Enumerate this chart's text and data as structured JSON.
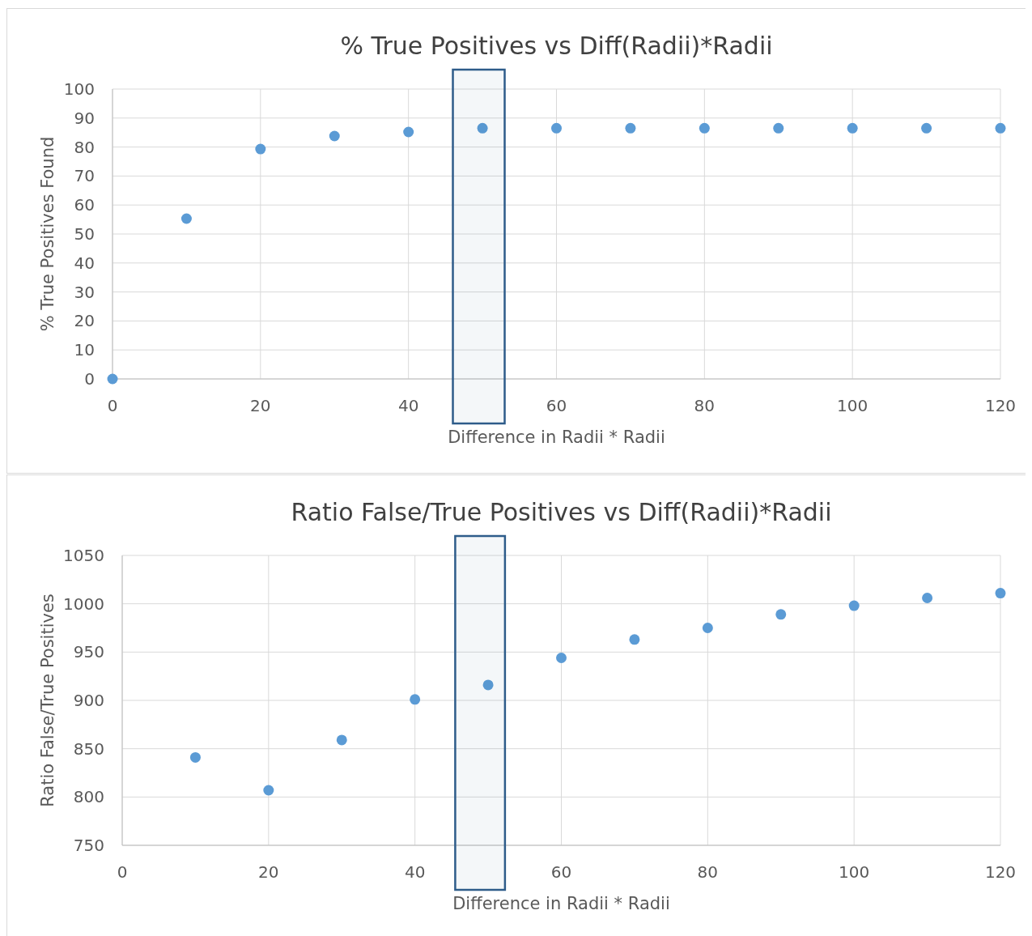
{
  "chart_data": [
    {
      "type": "scatter",
      "title": "% True Positives vs Diff(Radii)*Radii",
      "xlabel": "Difference in Radii * Radii",
      "ylabel": "% True Positives Found",
      "x": [
        0,
        10,
        20,
        30,
        40,
        50,
        60,
        70,
        80,
        90,
        100,
        110,
        120
      ],
      "series": [
        {
          "color": "#5b9bd5",
          "values": [
            0,
            55.3,
            79.3,
            83.8,
            85.2,
            86.5,
            86.5,
            86.5,
            86.5,
            86.5,
            86.5,
            86.5,
            86.5
          ]
        }
      ],
      "xlim": [
        0,
        120
      ],
      "xticks": [
        0,
        20,
        40,
        60,
        80,
        100,
        120
      ],
      "ylim": [
        0,
        100
      ],
      "yticks": [
        0,
        10,
        20,
        30,
        40,
        50,
        60,
        70,
        80,
        90,
        100
      ],
      "grid": true,
      "marker": "circle",
      "bands": [
        {
          "axis": "x",
          "from": 46,
          "to": 53,
          "color": "#2e5c8a"
        }
      ]
    },
    {
      "type": "scatter",
      "title": "Ratio False/True Positives vs Diff(Radii)*Radii",
      "xlabel": "Difference in Radii * Radii",
      "ylabel": "Ratio False/True Positives",
      "x": [
        10,
        20,
        30,
        40,
        50,
        60,
        70,
        80,
        90,
        100,
        110,
        120
      ],
      "series": [
        {
          "color": "#5b9bd5",
          "values": [
            841,
            807,
            859,
            901,
            916,
            944,
            963,
            975,
            989,
            998,
            1006,
            1011
          ]
        }
      ],
      "xlim": [
        0,
        120
      ],
      "xticks": [
        0,
        20,
        40,
        60,
        80,
        100,
        120
      ],
      "ylim": [
        750,
        1050
      ],
      "yticks": [
        750,
        800,
        850,
        900,
        950,
        1000,
        1050
      ],
      "grid": true,
      "marker": "circle",
      "bands": [
        {
          "axis": "x",
          "from": 45.5,
          "to": 52.3,
          "color": "#2e5c8a"
        }
      ]
    }
  ]
}
